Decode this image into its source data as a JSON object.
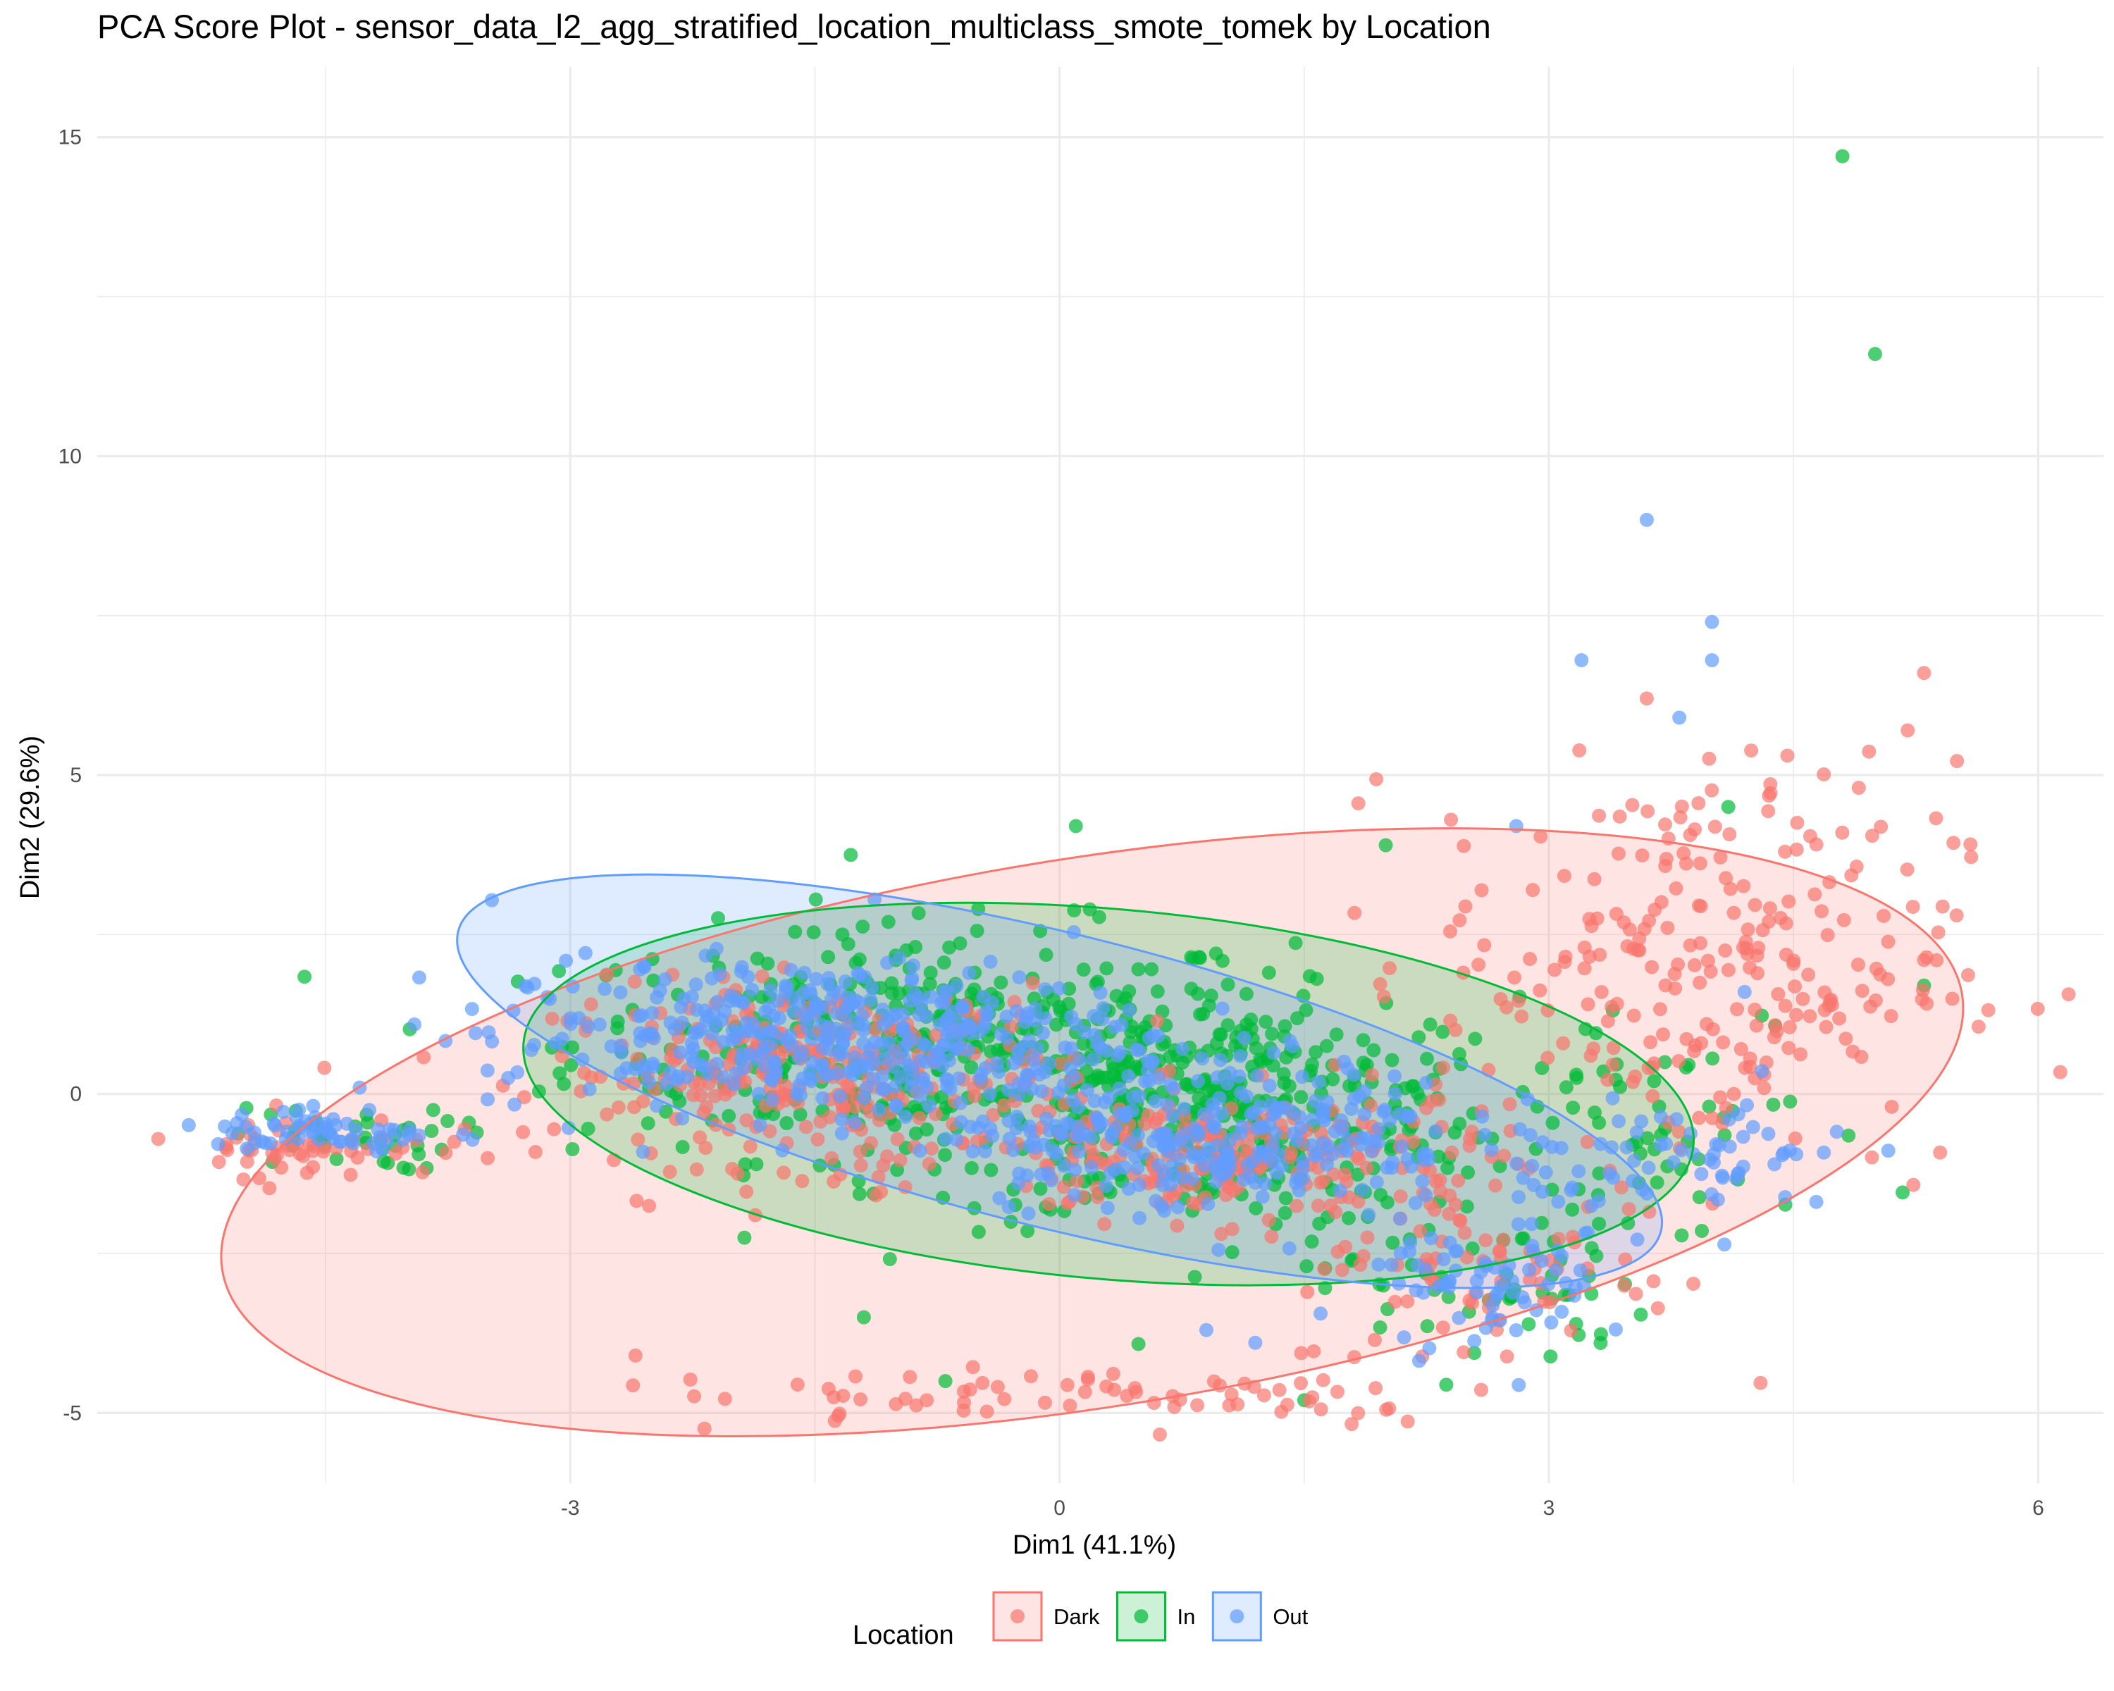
{
  "chart_data": {
    "type": "scatter",
    "title": "PCA Score Plot - sensor_data_l2_agg_stratified_location_multiclass_smote_tomek by Location",
    "xlabel": "Dim1 (41.1%)",
    "ylabel": "Dim2 (29.6%)",
    "xlim": [
      -5.9,
      6.4
    ],
    "ylim": [
      -6.1,
      16.1
    ],
    "x_ticks": [
      -3,
      0,
      3,
      6
    ],
    "x_tick_labels": [
      "-3",
      "0",
      "3",
      "6"
    ],
    "y_ticks": [
      -5,
      0,
      5,
      10,
      15
    ],
    "y_tick_labels": [
      "-5",
      "0",
      "5",
      "10",
      "15"
    ],
    "grid": true,
    "legend": {
      "title": "Location",
      "position": "bottom"
    },
    "series": [
      {
        "name": "Dark",
        "color": "#F8766D",
        "ellipse": {
          "cx": 0.2,
          "cy": -0.6,
          "rx": 5.4,
          "ry": 4.3,
          "angle_deg": 9
        },
        "clusters": [
          {
            "cx": -1.5,
            "cy": 0.3,
            "sx": 0.8,
            "sy": 0.7,
            "n": 300
          },
          {
            "cx": 1.0,
            "cy": -1.0,
            "sx": 0.8,
            "sy": 0.5,
            "n": 220
          },
          {
            "cx": 3.9,
            "cy": 2.0,
            "sx": 0.8,
            "sy": 1.6,
            "n": 260
          },
          {
            "cx": 0.2,
            "cy": -4.7,
            "sx": 1.4,
            "sy": 0.25,
            "n": 70
          },
          {
            "cx": 2.6,
            "cy": -2.8,
            "sx": 0.6,
            "sy": 0.8,
            "n": 80
          },
          {
            "cx": -4.6,
            "cy": -0.8,
            "sx": 0.4,
            "sy": 0.25,
            "n": 50
          }
        ],
        "points": [
          [
            5.3,
            6.6
          ],
          [
            5.2,
            5.7
          ],
          [
            4.9,
            4.8
          ],
          [
            5.5,
            2.8
          ],
          [
            3.6,
            6.2
          ],
          [
            2.4,
            4.3
          ],
          [
            -2.6,
            -4.1
          ],
          [
            5.3,
            2.1
          ]
        ]
      },
      {
        "name": "In",
        "color": "#00BA38",
        "ellipse": {
          "cx": 0.3,
          "cy": 0.0,
          "rx": 3.6,
          "ry": 2.9,
          "angle_deg": -5
        },
        "clusters": [
          {
            "cx": -0.8,
            "cy": 0.8,
            "sx": 1.1,
            "sy": 0.9,
            "n": 400
          },
          {
            "cx": 1.0,
            "cy": -0.3,
            "sx": 0.9,
            "sy": 0.9,
            "n": 360
          },
          {
            "cx": -4.4,
            "cy": -0.7,
            "sx": 0.35,
            "sy": 0.25,
            "n": 40
          },
          {
            "cx": 2.6,
            "cy": -3.0,
            "sx": 0.5,
            "sy": 0.7,
            "n": 60
          },
          {
            "cx": 3.8,
            "cy": -0.6,
            "sx": 0.6,
            "sy": 1.0,
            "n": 50
          }
        ],
        "points": [
          [
            4.8,
            14.7
          ],
          [
            5.0,
            11.6
          ],
          [
            4.1,
            4.5
          ],
          [
            0.1,
            4.2
          ],
          [
            2.0,
            3.9
          ],
          [
            5.3,
            1.7
          ],
          [
            -0.7,
            -4.5
          ],
          [
            1.5,
            -4.8
          ],
          [
            -1.2,
            -3.5
          ]
        ]
      },
      {
        "name": "Out",
        "color": "#619CFF",
        "ellipse": {
          "cx": 0.0,
          "cy": 0.2,
          "rx": 3.8,
          "ry": 2.3,
          "angle_deg": -14
        },
        "clusters": [
          {
            "cx": -1.5,
            "cy": 0.9,
            "sx": 1.0,
            "sy": 0.6,
            "n": 420
          },
          {
            "cx": 0.9,
            "cy": -0.6,
            "sx": 0.8,
            "sy": 0.6,
            "n": 300
          },
          {
            "cx": -4.5,
            "cy": -0.6,
            "sx": 0.35,
            "sy": 0.2,
            "n": 60
          },
          {
            "cx": 2.6,
            "cy": -3.0,
            "sx": 0.35,
            "sy": 0.5,
            "n": 70
          },
          {
            "cx": 3.9,
            "cy": -1.0,
            "sx": 0.5,
            "sy": 0.5,
            "n": 70
          }
        ],
        "points": [
          [
            3.6,
            9.0
          ],
          [
            4.0,
            7.4
          ],
          [
            4.0,
            6.8
          ],
          [
            3.2,
            6.8
          ],
          [
            3.8,
            5.9
          ],
          [
            2.8,
            4.2
          ],
          [
            0.9,
            -3.7
          ],
          [
            4.2,
            1.6
          ],
          [
            1.2,
            -3.9
          ]
        ]
      }
    ]
  }
}
